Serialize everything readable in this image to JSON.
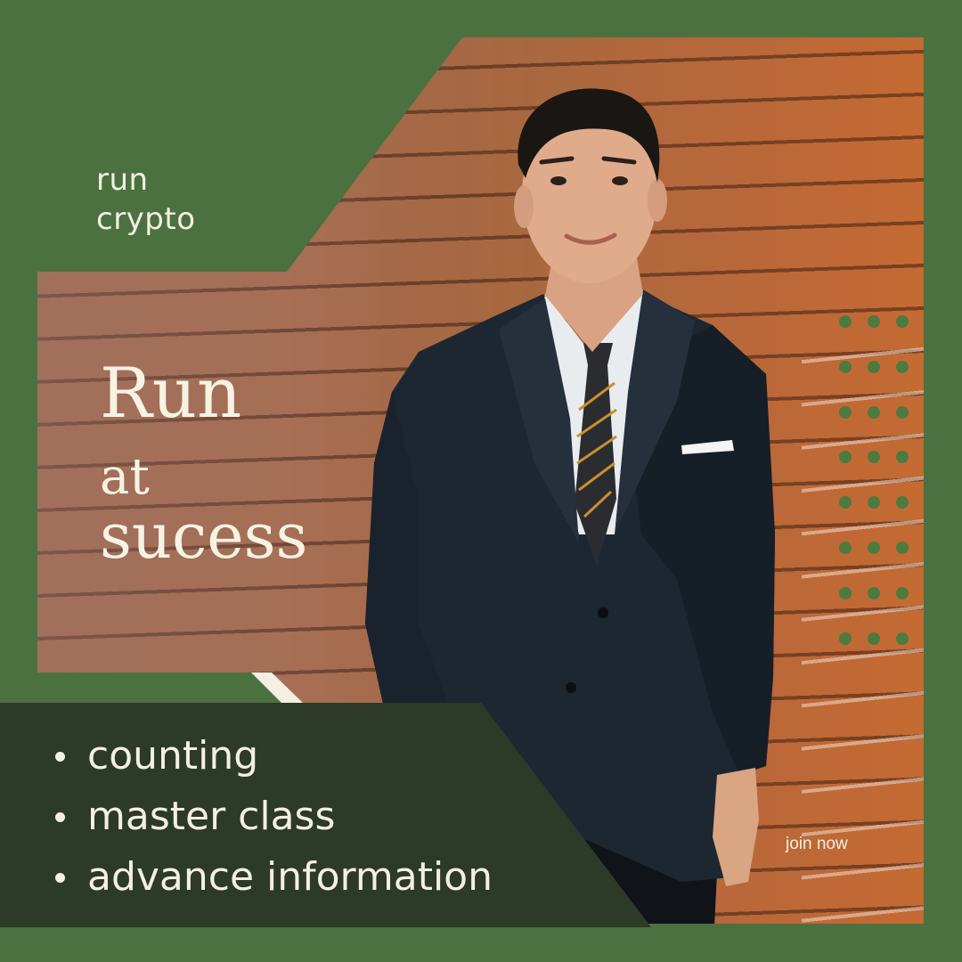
{
  "brand": {
    "line1": "run",
    "line2": "crypto"
  },
  "headline": {
    "line1": "Run",
    "line2": "at",
    "line3": "sucess"
  },
  "features": [
    "counting",
    "master class",
    "advance information"
  ],
  "cta": "join now",
  "colors": {
    "green": "#4c7140",
    "dark_green": "#2c3a27",
    "cream": "#f3f0e2",
    "dot_green": "#4d7a3f"
  },
  "photo": "man-in-suit-leaning-on-wood-wall"
}
